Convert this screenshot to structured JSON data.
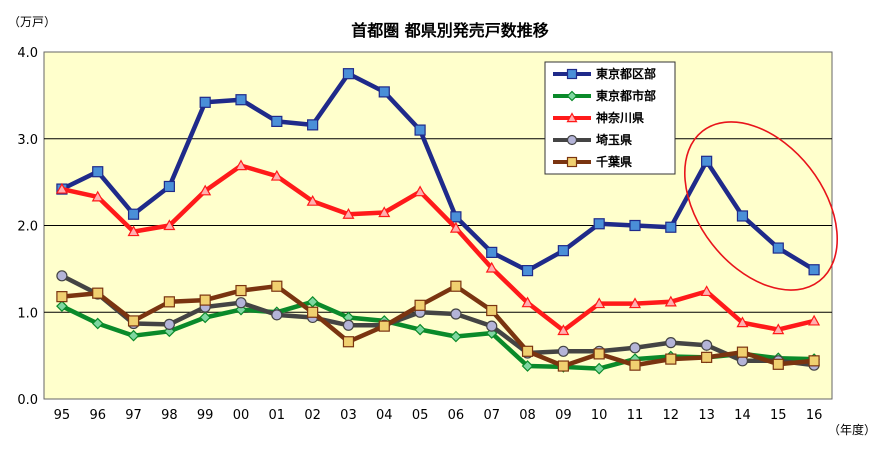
{
  "chart_data": {
    "type": "line",
    "title": "首都圏 都県別発売戸数推移",
    "ylabel": "（万戸）",
    "xlabel": "（年度）",
    "ylim": [
      0,
      4
    ],
    "yticks": [
      "0.0",
      "1.0",
      "2.0",
      "3.0",
      "4.0"
    ],
    "categories": [
      "95",
      "96",
      "97",
      "98",
      "99",
      "00",
      "01",
      "02",
      "03",
      "04",
      "05",
      "06",
      "07",
      "08",
      "09",
      "10",
      "11",
      "12",
      "13",
      "14",
      "15",
      "16"
    ],
    "grid": "horizontal",
    "legend_position": "top-right",
    "highlight": {
      "shape": "ellipse",
      "color": "#e8141b",
      "around": [
        "13",
        "14",
        "15",
        "16"
      ]
    },
    "series": [
      {
        "name": "東京都区部",
        "color": "#1f2a8a",
        "marker": "square",
        "marker_fill": "#4a8fd8",
        "values": [
          2.42,
          2.62,
          2.13,
          2.45,
          3.42,
          3.45,
          3.2,
          3.16,
          3.75,
          3.54,
          3.1,
          2.1,
          1.69,
          1.48,
          1.71,
          2.02,
          2.0,
          1.98,
          2.74,
          2.11,
          1.74,
          1.49
        ]
      },
      {
        "name": "東京都市部",
        "color": "#0a8a2a",
        "marker": "diamond",
        "marker_fill": "#7fd6a0",
        "values": [
          1.07,
          0.87,
          0.73,
          0.78,
          0.94,
          1.03,
          1.0,
          1.12,
          0.94,
          0.9,
          0.8,
          0.72,
          0.76,
          0.38,
          0.37,
          0.35,
          0.46,
          0.49,
          0.48,
          0.52,
          0.47,
          0.46
        ]
      },
      {
        "name": "神奈川県",
        "color": "#ff1a1a",
        "marker": "triangle",
        "marker_fill": "#ffb0b0",
        "values": [
          2.42,
          2.33,
          1.93,
          2.0,
          2.4,
          2.69,
          2.57,
          2.28,
          2.13,
          2.15,
          2.39,
          1.97,
          1.51,
          1.11,
          0.79,
          1.1,
          1.1,
          1.12,
          1.24,
          0.88,
          0.8,
          0.9
        ]
      },
      {
        "name": "埼玉県",
        "color": "#444444",
        "marker": "circle",
        "marker_fill": "#b4b4d8",
        "values": [
          1.42,
          1.21,
          0.87,
          0.86,
          1.06,
          1.11,
          0.97,
          0.94,
          0.85,
          0.85,
          1.0,
          0.98,
          0.84,
          0.53,
          0.55,
          0.55,
          0.59,
          0.65,
          0.62,
          0.44,
          0.44,
          0.39
        ]
      },
      {
        "name": "千葉県",
        "color": "#7a3410",
        "marker": "square",
        "marker_fill": "#f0d070",
        "values": [
          1.18,
          1.22,
          0.9,
          1.12,
          1.14,
          1.25,
          1.3,
          1.0,
          0.66,
          0.84,
          1.08,
          1.3,
          1.02,
          0.55,
          0.38,
          0.52,
          0.39,
          0.46,
          0.48,
          0.54,
          0.4,
          0.44
        ]
      }
    ]
  }
}
